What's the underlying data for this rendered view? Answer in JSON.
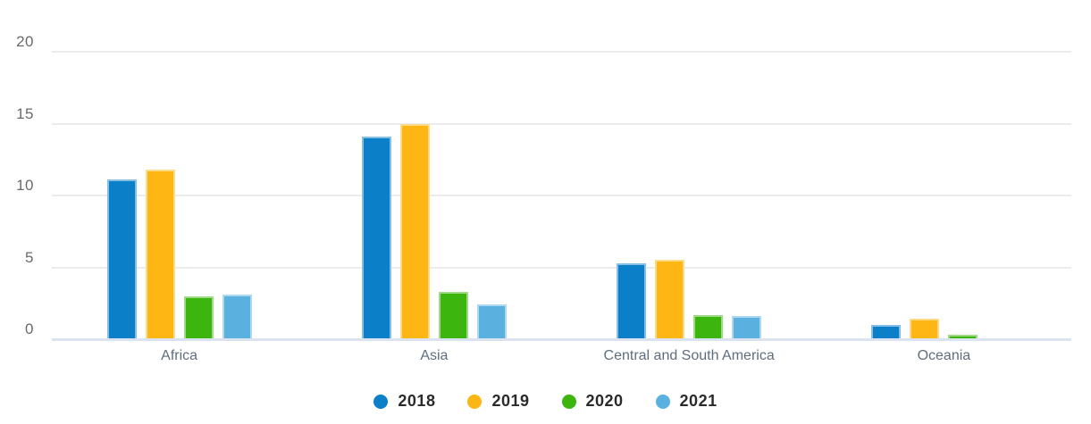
{
  "chart_data": {
    "type": "bar",
    "title": "",
    "xlabel": "",
    "ylabel": "",
    "categories": [
      "Africa",
      "Asia",
      "Central and South America",
      "Oceania"
    ],
    "series": [
      {
        "name": "2018",
        "color": "#0b80c8",
        "values": [
          11.1,
          14.1,
          5.3,
          1.0
        ]
      },
      {
        "name": "2019",
        "color": "#fdb613",
        "values": [
          11.8,
          15.0,
          5.5,
          1.4
        ]
      },
      {
        "name": "2020",
        "color": "#3cb50e",
        "values": [
          3.0,
          3.3,
          1.7,
          0.3
        ]
      },
      {
        "name": "2021",
        "color": "#5ab1e0",
        "values": [
          3.1,
          2.4,
          1.6,
          0
        ]
      }
    ],
    "ylim": [
      0,
      20
    ],
    "yticks": [
      0,
      5,
      10,
      15,
      20
    ],
    "grid": true,
    "legend_position": "bottom"
  },
  "colors": {
    "background": "#ffffff",
    "gridline": "#ececec",
    "baseline": "#dce3f0",
    "axis_label": "#6a6a6a",
    "category_label": "#5f6e7d",
    "legend_label": "#2b2b2b"
  }
}
